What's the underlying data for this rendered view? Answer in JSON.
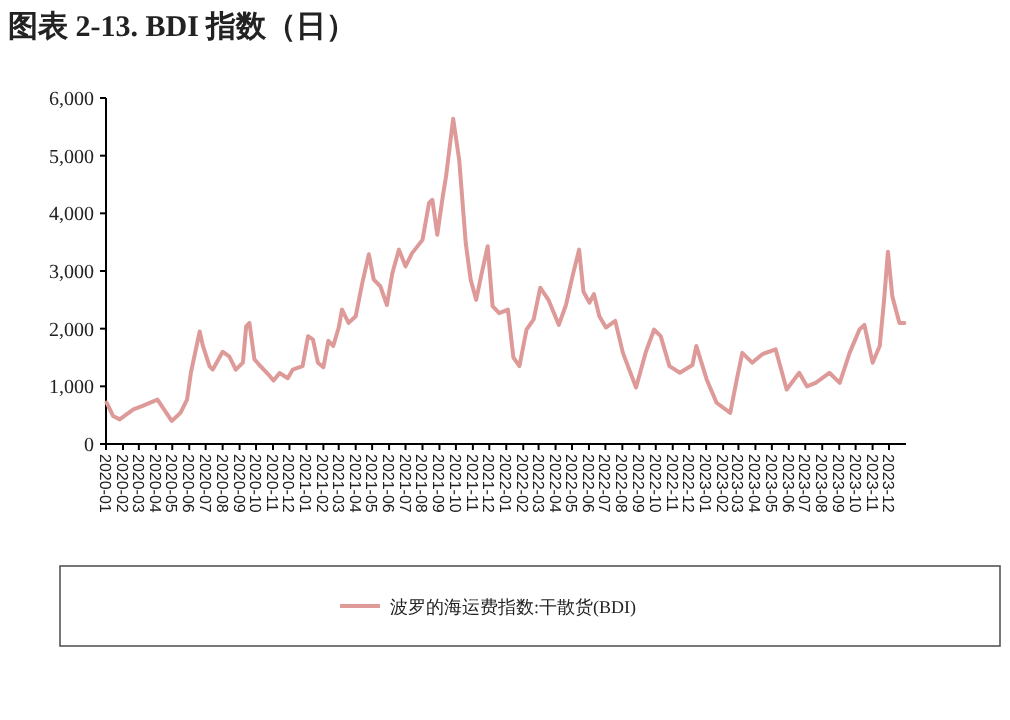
{
  "chart_data": {
    "type": "line",
    "title": "图表 2-13. BDI 指数（日）",
    "legend": "bottom",
    "grid": false,
    "marker": "none",
    "line_style": "solid",
    "xlim": [
      "2020-01",
      "2024-01"
    ],
    "xticks": [
      "2020-01",
      "2020-02",
      "2020-03",
      "2020-04",
      "2020-05",
      "2020-06",
      "2020-07",
      "2020-08",
      "2020-09",
      "2020-10",
      "2020-11",
      "2020-12",
      "2021-01",
      "2021-02",
      "2021-03",
      "2021-04",
      "2021-05",
      "2021-06",
      "2021-07",
      "2021-08",
      "2021-09",
      "2021-10",
      "2021-11",
      "2021-12",
      "2022-01",
      "2022-02",
      "2022-03",
      "2022-04",
      "2022-05",
      "2022-06",
      "2022-07",
      "2022-08",
      "2022-09",
      "2022-10",
      "2022-11",
      "2022-12",
      "2023-01",
      "2023-02",
      "2023-03",
      "2023-04",
      "2023-05",
      "2023-06",
      "2023-07",
      "2023-08",
      "2023-09",
      "2023-10",
      "2023-11",
      "2023-12"
    ],
    "ylim": [
      0,
      6000
    ],
    "yticks": [
      {
        "value": 0,
        "label": "0"
      },
      {
        "value": 1000,
        "label": "1,000"
      },
      {
        "value": 2000,
        "label": "2,000"
      },
      {
        "value": 3000,
        "label": "3,000"
      },
      {
        "value": 4000,
        "label": "4,000"
      },
      {
        "value": 5000,
        "label": "5,000"
      },
      {
        "value": 6000,
        "label": "6,000"
      }
    ],
    "x": [
      "2020-01-02",
      "2020-01-14",
      "2020-01-26",
      "2020-02-20",
      "2020-03-08",
      "2020-04-04",
      "2020-04-30",
      "2020-05-16",
      "2020-05-28",
      "2020-06-04",
      "2020-06-20",
      "2020-06-26",
      "2020-07-08",
      "2020-07-14",
      "2020-08-01",
      "2020-08-13",
      "2020-08-25",
      "2020-09-07",
      "2020-09-13",
      "2020-09-19",
      "2020-09-28",
      "2020-10-07",
      "2020-10-26",
      "2020-11-02",
      "2020-11-13",
      "2020-11-28",
      "2020-12-07",
      "2020-12-25",
      "2021-01-04",
      "2021-01-13",
      "2021-01-22",
      "2021-02-01",
      "2021-02-10",
      "2021-02-19",
      "2021-03-01",
      "2021-03-07",
      "2021-03-19",
      "2021-04-01",
      "2021-04-13",
      "2021-04-25",
      "2021-05-04",
      "2021-05-16",
      "2021-05-28",
      "2021-06-07",
      "2021-06-19",
      "2021-07-01",
      "2021-07-13",
      "2021-08-01",
      "2021-08-13",
      "2021-08-19",
      "2021-08-28",
      "2021-09-07",
      "2021-09-13",
      "2021-09-26",
      "2021-10-07",
      "2021-10-19",
      "2021-10-28",
      "2021-11-07",
      "2021-11-16",
      "2021-11-28",
      "2021-12-07",
      "2021-12-19",
      "2022-01-04",
      "2022-01-14",
      "2022-01-25",
      "2022-02-07",
      "2022-02-20",
      "2022-03-04",
      "2022-03-19",
      "2022-04-07",
      "2022-04-20",
      "2022-05-02",
      "2022-05-14",
      "2022-05-22",
      "2022-06-02",
      "2022-06-10",
      "2022-06-20",
      "2022-07-02",
      "2022-07-19",
      "2022-08-02",
      "2022-08-26",
      "2022-09-13",
      "2022-09-28",
      "2022-10-10",
      "2022-10-26",
      "2022-11-14",
      "2022-12-07",
      "2022-12-14",
      "2023-01-02",
      "2023-01-20",
      "2023-02-14",
      "2023-02-26",
      "2023-03-08",
      "2023-03-26",
      "2023-04-14",
      "2023-05-08",
      "2023-05-28",
      "2023-06-20",
      "2023-07-04",
      "2023-07-20",
      "2023-08-14",
      "2023-09-02",
      "2023-09-20",
      "2023-10-08",
      "2023-10-17",
      "2023-11-01",
      "2023-11-14",
      "2023-11-22",
      "2023-11-29",
      "2023-12-07",
      "2023-12-20",
      "2023-12-29"
    ],
    "series": [
      {
        "name": "波罗的海运费指数:干散货(BDI)",
        "color": "#de9a98",
        "values": [
          720,
          485,
          427,
          600,
          660,
          770,
          400,
          540,
          770,
          1235,
          1950,
          1700,
          1350,
          1290,
          1600,
          1520,
          1290,
          1410,
          2040,
          2100,
          1470,
          1370,
          1180,
          1100,
          1230,
          1140,
          1290,
          1350,
          1870,
          1810,
          1410,
          1330,
          1790,
          1700,
          2020,
          2330,
          2100,
          2215,
          2790,
          3290,
          2850,
          2735,
          2410,
          2965,
          3370,
          3080,
          3310,
          3540,
          4180,
          4235,
          3630,
          4290,
          4640,
          5640,
          4930,
          3480,
          2850,
          2500,
          2910,
          3430,
          2390,
          2270,
          2330,
          1500,
          1350,
          1985,
          2160,
          2710,
          2500,
          2065,
          2410,
          2910,
          3370,
          2640,
          2450,
          2600,
          2215,
          2020,
          2135,
          1580,
          980,
          1600,
          1985,
          1870,
          1350,
          1235,
          1370,
          1700,
          1120,
          715,
          540,
          1120,
          1580,
          1410,
          1560,
          1640,
          945,
          1235,
          1000,
          1060,
          1235,
          1060,
          1580,
          1985,
          2065,
          1410,
          1700,
          2500,
          3335,
          2560,
          2100,
          2100
        ]
      }
    ]
  }
}
